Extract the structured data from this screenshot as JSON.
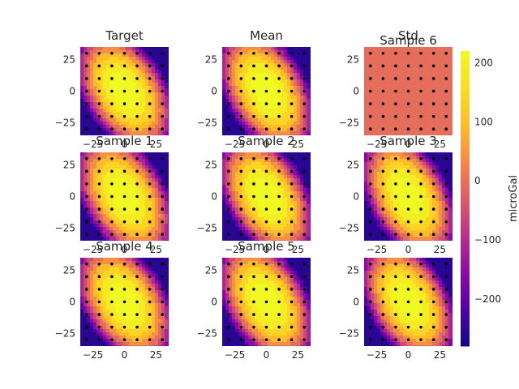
{
  "chart_data": {
    "type": "heatmap",
    "description_note": "",
    "panels": [
      {
        "title": "Target"
      },
      {
        "title": "Mean"
      },
      {
        "title": "Std",
        "extra_title": "Sample 6"
      },
      {
        "title": "Sample 1"
      },
      {
        "title": "Sample 2"
      },
      {
        "title": "Sample 3"
      },
      {
        "title": "Sample 4"
      },
      {
        "title": "Sample 5"
      },
      {
        "title": ""
      }
    ],
    "x_ticks": [
      "−25",
      "0",
      "25"
    ],
    "y_ticks": [
      "25",
      "0",
      "−25"
    ],
    "x_range": [
      -35,
      35
    ],
    "y_range": [
      -35,
      35
    ],
    "colorbar": {
      "label": "microGal",
      "ticks": [
        "200",
        "100",
        "0",
        "−100",
        "−200"
      ],
      "tick_values": [
        200,
        100,
        0,
        -100,
        -200
      ],
      "range": [
        -280,
        220
      ],
      "colormap": "plasma"
    },
    "field": {
      "peak": 220,
      "min": -280,
      "std_uniform_value": 0
    },
    "stations_grid_step": 10,
    "colors": {
      "bg": "#ffffff",
      "text": "#262626",
      "station": "#000000"
    }
  }
}
